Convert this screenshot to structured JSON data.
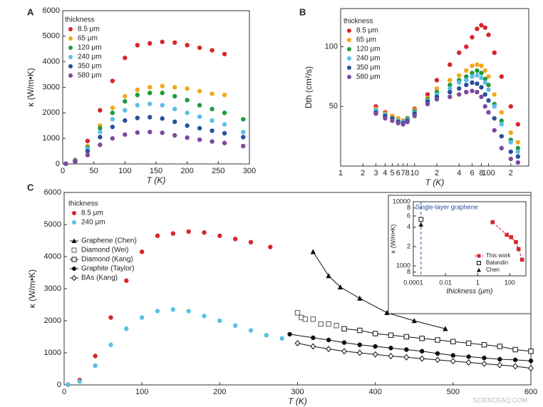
{
  "chart_data": [
    {
      "type": "scatter",
      "panel": "A",
      "xlabel": "T (K)",
      "ylabel": "κ (W/m•K)",
      "legend_title": "thickness",
      "xlim": [
        0,
        300
      ],
      "ylim": [
        0,
        6000
      ],
      "xticks": [
        0,
        50,
        100,
        150,
        200,
        250,
        300
      ],
      "yticks": [
        0,
        1000,
        2000,
        3000,
        4000,
        5000,
        6000
      ],
      "series": [
        {
          "name": "8.5 μm",
          "color": "#d7262b",
          "marker": "circle",
          "x": [
            5,
            20,
            40,
            60,
            80,
            100,
            120,
            140,
            160,
            180,
            200,
            220,
            240,
            260
          ],
          "values": [
            10,
            150,
            900,
            2100,
            3250,
            4150,
            4650,
            4720,
            4780,
            4750,
            4650,
            4550,
            4450,
            4300
          ]
        },
        {
          "name": "65 μm",
          "color": "#f0a81c",
          "marker": "circle",
          "x": [
            5,
            20,
            40,
            60,
            80,
            100,
            120,
            140,
            160,
            180,
            200,
            220,
            240,
            260
          ],
          "values": [
            10,
            130,
            700,
            1500,
            2200,
            2650,
            2900,
            3000,
            3050,
            3000,
            2950,
            2850,
            2750,
            2700
          ]
        },
        {
          "name": "120 μm",
          "color": "#1f9a3e",
          "marker": "circle",
          "x": [
            5,
            20,
            40,
            60,
            80,
            100,
            120,
            140,
            160,
            180,
            200,
            220,
            240,
            260,
            290
          ],
          "values": [
            10,
            120,
            650,
            1400,
            2000,
            2450,
            2700,
            2780,
            2780,
            2650,
            2500,
            2300,
            2150,
            2000,
            1750
          ]
        },
        {
          "name": "240 μm",
          "color": "#5bbfe6",
          "marker": "circle",
          "x": [
            5,
            20,
            40,
            60,
            80,
            100,
            120,
            140,
            160,
            180,
            200,
            220,
            240,
            260,
            290
          ],
          "values": [
            10,
            110,
            600,
            1250,
            1750,
            2100,
            2300,
            2350,
            2300,
            2150,
            2000,
            1850,
            1700,
            1550,
            1250
          ]
        },
        {
          "name": "350 μm",
          "color": "#2a4f9c",
          "marker": "circle",
          "x": [
            5,
            20,
            40,
            60,
            80,
            100,
            120,
            140,
            160,
            180,
            200,
            220,
            240,
            260,
            290
          ],
          "values": [
            10,
            100,
            500,
            1050,
            1450,
            1700,
            1800,
            1830,
            1780,
            1650,
            1500,
            1400,
            1300,
            1200,
            1050
          ]
        },
        {
          "name": "580 μm",
          "color": "#7b4a9e",
          "marker": "circle",
          "x": [
            5,
            20,
            40,
            60,
            80,
            100,
            120,
            140,
            160,
            180,
            200,
            220,
            240,
            260,
            290
          ],
          "values": [
            10,
            80,
            350,
            750,
            1000,
            1150,
            1230,
            1250,
            1220,
            1120,
            1030,
            950,
            880,
            820,
            700
          ]
        }
      ]
    },
    {
      "type": "scatter",
      "panel": "B",
      "xlabel": "T (K)",
      "ylabel": "Dth (cm²/s)",
      "legend_title": "thickness",
      "xscale": "log",
      "xlim": [
        1,
        350
      ],
      "ylim": [
        0,
        132
      ],
      "xticks": [
        1,
        2,
        3,
        4,
        5,
        6,
        7,
        8,
        10,
        {
          "value": 20,
          "label": "2"
        },
        {
          "value": 40,
          "label": "4"
        },
        {
          "value": 60,
          "label": "6"
        },
        {
          "value": 80,
          "label": "8"
        },
        100,
        {
          "value": 200,
          "label": "2"
        }
      ],
      "yticks": [
        50,
        100
      ],
      "series": [
        {
          "name": "8.5 μm",
          "color": "#d7262b",
          "marker": "circle",
          "x": [
            3,
            4,
            5,
            6,
            7,
            8,
            10,
            15,
            20,
            30,
            40,
            50,
            60,
            70,
            80,
            90,
            100,
            120,
            150,
            200,
            250
          ],
          "values": [
            50,
            45,
            42,
            40,
            38,
            40,
            48,
            60,
            72,
            85,
            95,
            100,
            108,
            115,
            118,
            116,
            110,
            95,
            75,
            50,
            35
          ]
        },
        {
          "name": "65 μm",
          "color": "#f0a81c",
          "marker": "circle",
          "x": [
            3,
            4,
            5,
            6,
            7,
            8,
            10,
            15,
            20,
            30,
            40,
            50,
            60,
            70,
            80,
            90,
            100,
            120,
            150,
            200,
            250
          ],
          "values": [
            48,
            44,
            42,
            40,
            38,
            40,
            47,
            57,
            65,
            72,
            76,
            80,
            84,
            85,
            84,
            80,
            75,
            60,
            45,
            28,
            20
          ]
        },
        {
          "name": "120 μm",
          "color": "#1f9a3e",
          "marker": "circle",
          "x": [
            3,
            4,
            5,
            6,
            7,
            8,
            10,
            15,
            20,
            30,
            40,
            50,
            60,
            70,
            80,
            90,
            100,
            120,
            150,
            200,
            250
          ],
          "values": [
            46,
            43,
            40,
            38,
            37,
            40,
            46,
            56,
            62,
            68,
            72,
            75,
            78,
            80,
            78,
            73,
            68,
            52,
            38,
            22,
            15
          ]
        },
        {
          "name": "240 μm",
          "color": "#5bbfe6",
          "marker": "circle",
          "x": [
            3,
            4,
            5,
            6,
            7,
            8,
            10,
            15,
            20,
            30,
            40,
            50,
            60,
            70,
            80,
            90,
            100,
            120,
            150,
            200,
            250
          ],
          "values": [
            47,
            43,
            40,
            38,
            37,
            39,
            45,
            55,
            60,
            65,
            70,
            72,
            75,
            76,
            74,
            70,
            64,
            50,
            35,
            20,
            12
          ]
        },
        {
          "name": "350 μm",
          "color": "#2a4f9c",
          "marker": "circle",
          "x": [
            3,
            4,
            5,
            6,
            7,
            8,
            10,
            15,
            20,
            30,
            40,
            50,
            60,
            70,
            80,
            90,
            100,
            120,
            150,
            200,
            250
          ],
          "values": [
            45,
            42,
            40,
            37,
            36,
            38,
            44,
            54,
            58,
            62,
            65,
            68,
            70,
            69,
            66,
            60,
            55,
            40,
            25,
            12,
            8
          ]
        },
        {
          "name": "580 μm",
          "color": "#7b4a9e",
          "marker": "circle",
          "x": [
            3,
            4,
            5,
            6,
            7,
            8,
            10,
            15,
            20,
            30,
            40,
            50,
            60,
            70,
            80,
            90,
            100,
            120,
            150,
            200,
            250
          ],
          "values": [
            44,
            40,
            38,
            36,
            35,
            37,
            42,
            52,
            56,
            58,
            60,
            62,
            63,
            62,
            58,
            50,
            45,
            30,
            15,
            6,
            3
          ]
        }
      ]
    },
    {
      "type": "scatter",
      "panel": "C",
      "xlabel": "T (K)",
      "ylabel": "κ (W/m•K)",
      "legend_title": "thickness",
      "xlim": [
        0,
        600
      ],
      "ylim": [
        0,
        6000
      ],
      "xticks": [
        0,
        100,
        200,
        300,
        400,
        500,
        600
      ],
      "yticks": [
        0,
        1000,
        2000,
        3000,
        4000,
        5000,
        6000
      ],
      "series": [
        {
          "name": "8.5 μm",
          "color": "#d7262b",
          "marker": "circle",
          "x": [
            5,
            20,
            40,
            60,
            80,
            100,
            120,
            140,
            160,
            180,
            200,
            220,
            240,
            265
          ],
          "values": [
            10,
            150,
            900,
            2100,
            3250,
            4150,
            4650,
            4720,
            4780,
            4750,
            4650,
            4550,
            4450,
            4300
          ]
        },
        {
          "name": "240 μm",
          "color": "#5bbfe6",
          "marker": "circle",
          "x": [
            5,
            20,
            40,
            60,
            80,
            100,
            120,
            140,
            160,
            180,
            200,
            220,
            240,
            260,
            280
          ],
          "values": [
            10,
            110,
            600,
            1250,
            1750,
            2100,
            2300,
            2350,
            2300,
            2150,
            2000,
            1850,
            1700,
            1550,
            1450
          ]
        },
        {
          "name": "Graphene (Chen)",
          "color": "#111111",
          "marker": "triangle",
          "line": true,
          "x": [
            320,
            340,
            355,
            380,
            415,
            450,
            490
          ],
          "values": [
            4150,
            3400,
            3050,
            2700,
            2250,
            2000,
            1750
          ]
        },
        {
          "name": "Diamond (Wei)",
          "color": "#555555",
          "marker": "open-square",
          "x": [
            300,
            305,
            310,
            320,
            330,
            340,
            350
          ],
          "values": [
            2250,
            2100,
            2050,
            2050,
            1900,
            1900,
            1850
          ]
        },
        {
          "name": "Diamond (Kang)",
          "color": "#111111",
          "marker": "open-square",
          "line": true,
          "x": [
            360,
            380,
            400,
            420,
            440,
            460,
            480,
            500,
            520,
            540,
            560,
            580,
            600
          ],
          "values": [
            1750,
            1700,
            1600,
            1550,
            1500,
            1450,
            1400,
            1350,
            1300,
            1250,
            1200,
            1100,
            1050
          ]
        },
        {
          "name": "Graphite (Taylor)",
          "color": "#111111",
          "marker": "circle",
          "line": true,
          "x": [
            290,
            320,
            340,
            360,
            380,
            400,
            420,
            440,
            460,
            480,
            500,
            520,
            540,
            560,
            580,
            600
          ],
          "values": [
            1580,
            1470,
            1400,
            1320,
            1250,
            1200,
            1150,
            1100,
            1050,
            980,
            920,
            880,
            840,
            800,
            780,
            750
          ]
        },
        {
          "name": "BAs (Kang)",
          "color": "#111111",
          "marker": "open-diamond",
          "line": true,
          "x": [
            300,
            320,
            340,
            360,
            380,
            400,
            420,
            440,
            460,
            480,
            500,
            520,
            540,
            560,
            580,
            600
          ],
          "values": [
            1300,
            1200,
            1120,
            1050,
            1000,
            950,
            900,
            860,
            820,
            780,
            740,
            700,
            660,
            620,
            580,
            520
          ]
        }
      ],
      "inset": {
        "type": "scatter",
        "xlabel": "thickness (μm)",
        "ylabel": "κ (W/m•K)",
        "xscale": "log",
        "yscale": "log",
        "xlim": [
          0.0001,
          1000
        ],
        "ylim": [
          700,
          10000
        ],
        "xticks": [
          0.0001,
          0.01,
          1,
          100
        ],
        "yticks": [
          {
            "value": 800,
            "label": "8"
          },
          1000,
          {
            "value": 2000,
            "label": "2"
          },
          {
            "value": 4000,
            "label": "4"
          },
          {
            "value": 6000,
            "label": "6"
          },
          {
            "value": 8000,
            "label": "8"
          },
          10000
        ],
        "reference_line": {
          "x": 0.0003,
          "label": "Single-layer graphene",
          "color": "#2a4f9c"
        },
        "series": [
          {
            "name": "This work",
            "color": "#d7262b",
            "marker": "square",
            "line": true,
            "x": [
              8.5,
              65,
              120,
              240,
              350,
              580
            ],
            "values": [
              4800,
              3050,
              2800,
              2350,
              1830,
              1250
            ]
          },
          {
            "name": "Balandin",
            "color": "#111111",
            "marker": "open-square",
            "x": [
              0.0003
            ],
            "values": [
              5300
            ]
          },
          {
            "name": "Chen",
            "color": "#111111",
            "marker": "triangle",
            "x": [
              0.0003
            ],
            "values": [
              4400
            ]
          }
        ]
      }
    }
  ],
  "watermark": "SCIENCEAQ.COM"
}
